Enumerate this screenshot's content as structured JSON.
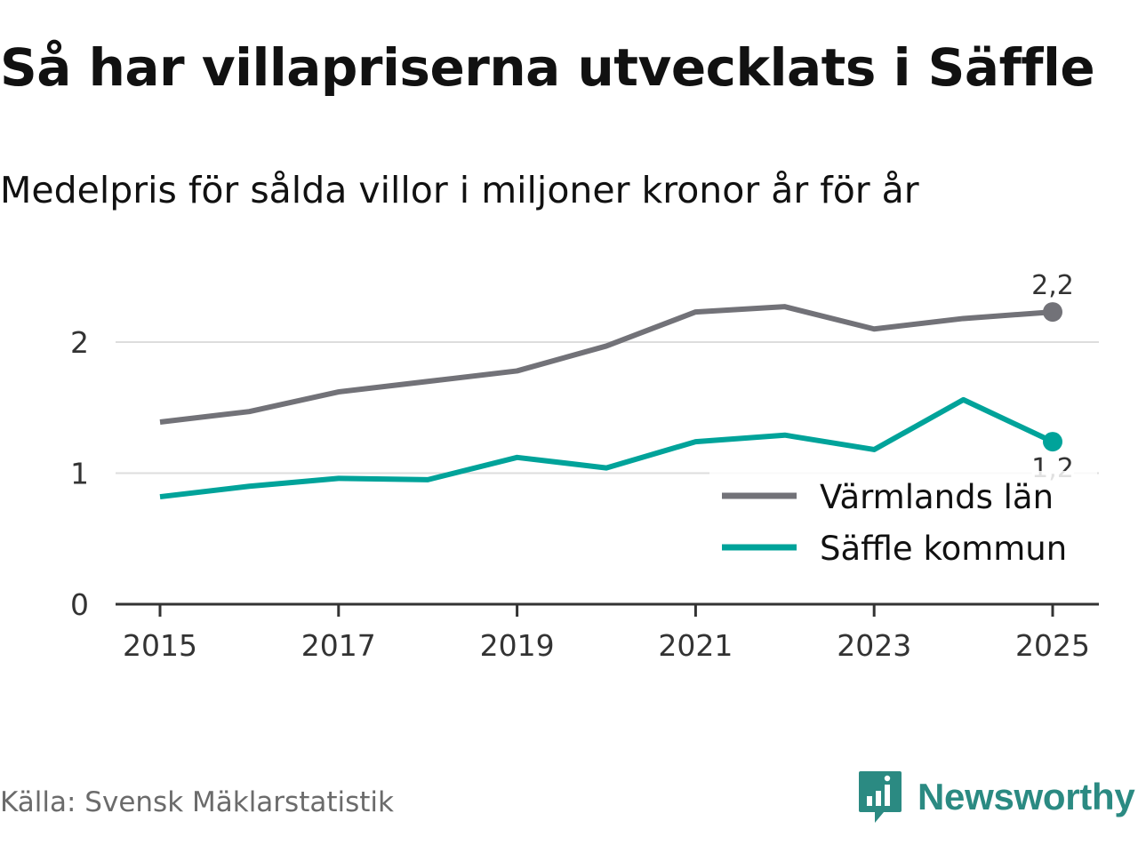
{
  "title": "Så har villapriserna utvecklats i Säffle",
  "subtitle": "Medelpris för sålda villor i miljoner kronor år för år",
  "source": "Källa: Svensk Mäklarstatistik",
  "brand": {
    "name": "Newsworthy",
    "logo_icon": "newsworthy-logo-icon",
    "color": "#2b8a82"
  },
  "colors": {
    "varmland": "#727278",
    "saffle": "#00a39a",
    "grid": "#dddddd",
    "axis": "#333333"
  },
  "chart_data": {
    "type": "line",
    "title": "Så har villapriserna utvecklats i Säffle",
    "subtitle": "Medelpris för sålda villor i miljoner kronor år för år",
    "xlabel": "",
    "ylabel": "",
    "x": [
      2015,
      2016,
      2017,
      2018,
      2019,
      2020,
      2021,
      2022,
      2023,
      2024,
      2025
    ],
    "x_ticks": [
      "2015",
      "2017",
      "2019",
      "2021",
      "2023",
      "2025"
    ],
    "y_ticks": [
      "0",
      "1",
      "2"
    ],
    "ylim": [
      0,
      2.65
    ],
    "grid": true,
    "legend_position": "bottom-right",
    "series": [
      {
        "name": "Värmlands län",
        "values": [
          1.39,
          1.47,
          1.62,
          1.7,
          1.78,
          1.97,
          2.23,
          2.27,
          2.1,
          2.18,
          2.23
        ],
        "end_label": "2,2"
      },
      {
        "name": "Säffle kommun",
        "values": [
          0.82,
          0.9,
          0.96,
          0.95,
          1.12,
          1.04,
          1.24,
          1.29,
          1.18,
          1.56,
          1.24
        ],
        "end_label": "1,2"
      }
    ]
  }
}
